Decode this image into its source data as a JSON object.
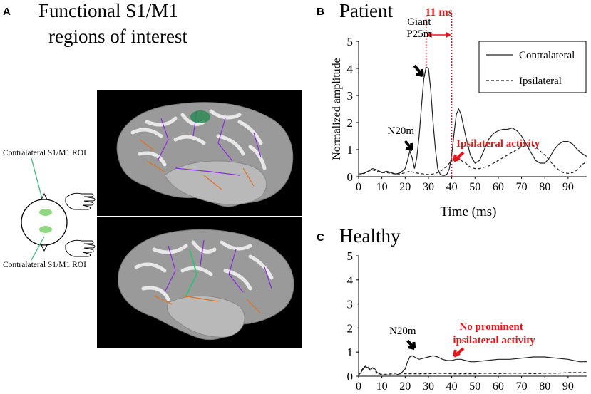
{
  "panel_a": {
    "letter": "A",
    "title_line1": "Functional S1/M1",
    "title_line2": "regions of interest",
    "roi_label_top": "Contralateral S1/M1 ROI",
    "roi_label_bottom": "Contralateral S1/M1 ROI"
  },
  "panel_b": {
    "letter": "B",
    "title": "Patient"
  },
  "panel_c": {
    "letter": "C",
    "title": "Healthy"
  },
  "colors": {
    "annotation_red": "#e8141b",
    "roi_green": "#3dbb7a",
    "line": "#222222"
  },
  "chart_data": [
    {
      "type": "line",
      "panel": "B",
      "title": "Patient",
      "xlabel": "Time (ms)",
      "ylabel": "Normalized amplitude",
      "xlim": [
        0,
        98
      ],
      "ylim": [
        0,
        5
      ],
      "xticks": [
        "0",
        "10",
        "20",
        "30",
        "40",
        "50",
        "60",
        "70",
        "80",
        "90"
      ],
      "yticks": [
        "0",
        "1",
        "2",
        "3",
        "4",
        "5"
      ],
      "legend": [
        "Contralateral",
        "Ipsilateral"
      ],
      "series": [
        {
          "name": "Contralateral",
          "style": "solid",
          "x": [
            0,
            2,
            4,
            6,
            8,
            10,
            12,
            14,
            16,
            18,
            20,
            21,
            22,
            23,
            24,
            25,
            26,
            27,
            28,
            29,
            30,
            31,
            32,
            33,
            34,
            35,
            36,
            37,
            38,
            39,
            40,
            41,
            42,
            43,
            44,
            46,
            48,
            50,
            52,
            54,
            56,
            58,
            60,
            62,
            64,
            66,
            68,
            70,
            72,
            74,
            76,
            78,
            80,
            82,
            84,
            86,
            88,
            90,
            92,
            94,
            96,
            98
          ],
          "y": [
            0.1,
            0.12,
            0.2,
            0.3,
            0.25,
            0.15,
            0.2,
            0.15,
            0.1,
            0.15,
            0.3,
            0.6,
            0.95,
            0.7,
            0.3,
            0.7,
            1.5,
            2.6,
            3.6,
            4.05,
            4.0,
            3.2,
            2.0,
            1.0,
            0.3,
            0.1,
            0.05,
            0.05,
            0.1,
            0.3,
            0.8,
            1.6,
            2.3,
            2.5,
            2.3,
            1.5,
            0.8,
            0.5,
            0.6,
            1.0,
            1.4,
            1.6,
            1.7,
            1.75,
            1.75,
            1.8,
            1.7,
            1.5,
            1.2,
            0.9,
            0.6,
            0.5,
            0.5,
            0.7,
            1.0,
            1.2,
            1.3,
            1.3,
            1.2,
            1.0,
            0.85,
            0.75
          ]
        },
        {
          "name": "Ipsilateral",
          "style": "dashed",
          "x": [
            0,
            2,
            4,
            6,
            8,
            10,
            12,
            14,
            16,
            18,
            20,
            22,
            24,
            26,
            28,
            30,
            32,
            34,
            36,
            38,
            40,
            42,
            44,
            46,
            48,
            50,
            52,
            54,
            56,
            58,
            60,
            62,
            64,
            66,
            68,
            70,
            72,
            74,
            76,
            78,
            80,
            82,
            84,
            86,
            88,
            90,
            92,
            94,
            96,
            98
          ],
          "y": [
            0.05,
            0.1,
            0.2,
            0.25,
            0.2,
            0.15,
            0.15,
            0.12,
            0.1,
            0.1,
            0.15,
            0.2,
            0.15,
            0.12,
            0.1,
            0.08,
            0.1,
            0.15,
            0.25,
            0.4,
            0.6,
            0.65,
            0.6,
            0.5,
            0.35,
            0.3,
            0.3,
            0.35,
            0.4,
            0.5,
            0.6,
            0.7,
            0.8,
            0.9,
            1.0,
            1.1,
            1.15,
            1.2,
            1.1,
            0.95,
            0.8,
            0.6,
            0.4,
            0.25,
            0.15,
            0.12,
            0.15,
            0.25,
            0.45,
            0.55
          ]
        }
      ],
      "annotations": [
        {
          "text": "Giant",
          "x": 26,
          "y": 4.9
        },
        {
          "text": "P25m",
          "x": 26,
          "y": 4.5
        },
        {
          "text": "N20m",
          "x": 20,
          "y": 2.0
        },
        {
          "text": "11 ms",
          "x": 34.5,
          "y": 5.6
        },
        {
          "text": "Ipsilateral  activity",
          "x": 43,
          "y": 1.3
        }
      ]
    },
    {
      "type": "line",
      "panel": "C",
      "title": "Healthy",
      "xlabel": "",
      "ylabel": "",
      "xlim": [
        0,
        98
      ],
      "ylim": [
        0,
        5
      ],
      "xticks": [
        "0",
        "10",
        "20",
        "30",
        "40",
        "50",
        "60",
        "70",
        "80",
        "90"
      ],
      "yticks": [
        "0",
        "1",
        "2",
        "3",
        "4",
        "5"
      ],
      "series": [
        {
          "name": "Contralateral",
          "style": "solid",
          "x": [
            0,
            1,
            2,
            3,
            4,
            5,
            6,
            7,
            8,
            10,
            12,
            14,
            16,
            18,
            20,
            21,
            22,
            23,
            24,
            26,
            28,
            30,
            32,
            34,
            36,
            38,
            40,
            42,
            44,
            46,
            48,
            50,
            55,
            60,
            65,
            70,
            75,
            80,
            85,
            90,
            95,
            98
          ],
          "y": [
            0.05,
            0.15,
            0.3,
            0.4,
            0.35,
            0.25,
            0.35,
            0.3,
            0.15,
            0.05,
            0.05,
            0.05,
            0.05,
            0.1,
            0.3,
            0.6,
            0.8,
            0.85,
            0.8,
            0.7,
            0.75,
            0.8,
            0.85,
            0.8,
            0.7,
            0.65,
            0.65,
            0.7,
            0.7,
            0.65,
            0.6,
            0.6,
            0.65,
            0.7,
            0.7,
            0.75,
            0.8,
            0.8,
            0.75,
            0.7,
            0.6,
            0.6
          ]
        },
        {
          "name": "Ipsilateral",
          "style": "dashed",
          "x": [
            0,
            1,
            2,
            3,
            4,
            5,
            6,
            7,
            8,
            10,
            12,
            14,
            16,
            18,
            20,
            25,
            30,
            35,
            40,
            45,
            50,
            55,
            60,
            65,
            70,
            75,
            80,
            85,
            90,
            95,
            98
          ],
          "y": [
            0.05,
            0.2,
            0.35,
            0.45,
            0.4,
            0.3,
            0.35,
            0.25,
            0.1,
            0.08,
            0.08,
            0.1,
            0.12,
            0.12,
            0.1,
            0.1,
            0.1,
            0.12,
            0.1,
            0.1,
            0.1,
            0.12,
            0.1,
            0.12,
            0.12,
            0.1,
            0.12,
            0.12,
            0.15,
            0.15,
            0.15
          ]
        }
      ],
      "annotations": [
        {
          "text": "N20m",
          "x": 22,
          "y": 1.25
        },
        {
          "text": "No prominent",
          "x": 57,
          "y": 1.55
        },
        {
          "text": "ipsilateral activity",
          "x": 57,
          "y": 1.0
        }
      ]
    }
  ]
}
